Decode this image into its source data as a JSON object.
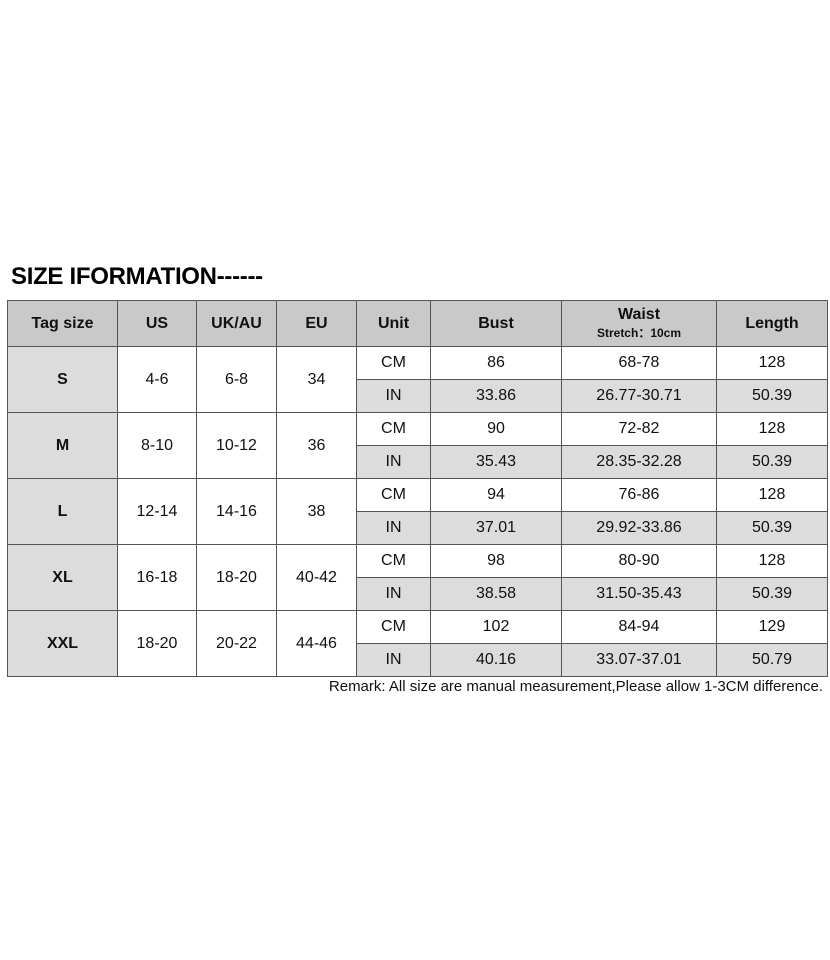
{
  "title": "SIZE IFORMATION------",
  "headers": {
    "tag": "Tag size",
    "us": "US",
    "uk": "UK/AU",
    "eu": "EU",
    "unit": "Unit",
    "bust": "Bust",
    "waist": "Waist",
    "waist_sub": "Stretch：10cm",
    "length": "Length"
  },
  "rows": [
    {
      "tag": "S",
      "us": "4-6",
      "uk": "6-8",
      "eu": "34",
      "cm": {
        "unit": "CM",
        "bust": "86",
        "waist": "68-78",
        "length": "128"
      },
      "in": {
        "unit": "IN",
        "bust": "33.86",
        "waist": "26.77-30.71",
        "length": "50.39"
      }
    },
    {
      "tag": "M",
      "us": "8-10",
      "uk": "10-12",
      "eu": "36",
      "cm": {
        "unit": "CM",
        "bust": "90",
        "waist": "72-82",
        "length": "128"
      },
      "in": {
        "unit": "IN",
        "bust": "35.43",
        "waist": "28.35-32.28",
        "length": "50.39"
      }
    },
    {
      "tag": "L",
      "us": "12-14",
      "uk": "14-16",
      "eu": "38",
      "cm": {
        "unit": "CM",
        "bust": "94",
        "waist": "76-86",
        "length": "128"
      },
      "in": {
        "unit": "IN",
        "bust": "37.01",
        "waist": "29.92-33.86",
        "length": "50.39"
      }
    },
    {
      "tag": "XL",
      "us": "16-18",
      "uk": "18-20",
      "eu": "40-42",
      "cm": {
        "unit": "CM",
        "bust": "98",
        "waist": "80-90",
        "length": "128"
      },
      "in": {
        "unit": "IN",
        "bust": "38.58",
        "waist": "31.50-35.43",
        "length": "50.39"
      }
    },
    {
      "tag": "XXL",
      "us": "18-20",
      "uk": "20-22",
      "eu": "44-46",
      "cm": {
        "unit": "CM",
        "bust": "102",
        "waist": "84-94",
        "length": "129"
      },
      "in": {
        "unit": "IN",
        "bust": "40.16",
        "waist": "33.07-37.01",
        "length": "50.79"
      }
    }
  ],
  "remark": "Remark: All size are manual measurement,Please allow 1-3CM difference."
}
